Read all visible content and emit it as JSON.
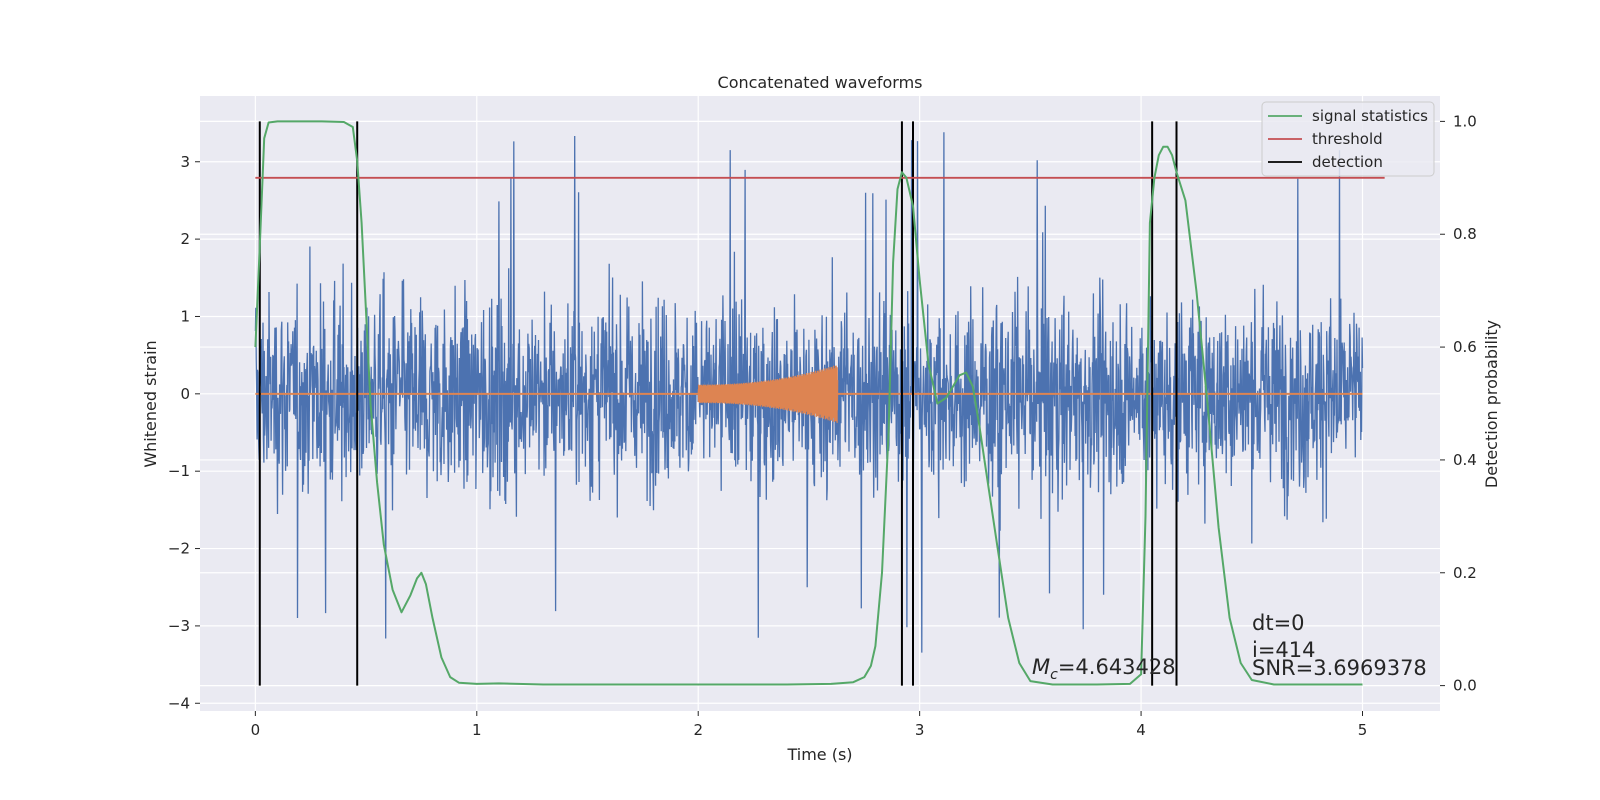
{
  "chart_data": {
    "type": "line",
    "title": "Concatenated waveforms",
    "xlabel": "Time (s)",
    "ylabel": "Whitened strain",
    "y2label": "Detection probability",
    "xlim": [
      -0.25,
      5.35
    ],
    "ylim": [
      -4.1,
      3.85
    ],
    "y2lim": [
      -0.045,
      1.045
    ],
    "x_ticks": [
      0,
      1,
      2,
      3,
      4,
      5
    ],
    "y_ticks": [
      -4,
      -3,
      -2,
      -1,
      0,
      1,
      2,
      3
    ],
    "y2_ticks": [
      0.0,
      0.2,
      0.4,
      0.6,
      0.8,
      1.0
    ],
    "y2_tick_labels": [
      "0.0",
      "0.2",
      "0.4",
      "0.6",
      "0.8",
      "1.0"
    ],
    "grid": true,
    "legend_position": "top-right",
    "colors": {
      "background": "#eaeaf2",
      "grid": "#ffffff",
      "strain": "#4c72b0",
      "template": "#dd8452",
      "signal_statistics": "#55a868",
      "threshold": "#c44e52",
      "detection": "#000000"
    },
    "series": [
      {
        "name": "signal statistics",
        "axis": "right",
        "x": [
          0.0,
          0.02,
          0.04,
          0.06,
          0.1,
          0.2,
          0.3,
          0.4,
          0.44,
          0.46,
          0.48,
          0.5,
          0.52,
          0.55,
          0.58,
          0.62,
          0.66,
          0.7,
          0.73,
          0.75,
          0.77,
          0.8,
          0.84,
          0.88,
          0.92,
          1.0,
          1.1,
          1.3,
          1.6,
          2.0,
          2.4,
          2.6,
          2.7,
          2.75,
          2.78,
          2.8,
          2.83,
          2.86,
          2.88,
          2.9,
          2.92,
          2.94,
          2.97,
          3.0,
          3.04,
          3.08,
          3.12,
          3.15,
          3.18,
          3.21,
          3.24,
          3.27,
          3.3,
          3.35,
          3.4,
          3.45,
          3.5,
          3.6,
          3.8,
          3.95,
          4.0,
          4.02,
          4.04,
          4.06,
          4.08,
          4.1,
          4.12,
          4.14,
          4.16,
          4.2,
          4.25,
          4.3,
          4.35,
          4.4,
          4.45,
          4.5,
          4.6,
          4.8,
          5.0
        ],
        "values": [
          0.6,
          0.78,
          0.97,
          0.998,
          1.0,
          1.0,
          1.0,
          0.999,
          0.99,
          0.93,
          0.82,
          0.66,
          0.5,
          0.36,
          0.25,
          0.17,
          0.13,
          0.16,
          0.19,
          0.2,
          0.18,
          0.12,
          0.05,
          0.015,
          0.005,
          0.003,
          0.004,
          0.002,
          0.002,
          0.002,
          0.002,
          0.003,
          0.006,
          0.015,
          0.035,
          0.07,
          0.2,
          0.45,
          0.75,
          0.88,
          0.91,
          0.9,
          0.85,
          0.72,
          0.57,
          0.5,
          0.51,
          0.53,
          0.55,
          0.555,
          0.53,
          0.46,
          0.38,
          0.25,
          0.12,
          0.04,
          0.008,
          0.002,
          0.002,
          0.003,
          0.02,
          0.3,
          0.82,
          0.9,
          0.94,
          0.955,
          0.955,
          0.94,
          0.91,
          0.86,
          0.7,
          0.5,
          0.28,
          0.12,
          0.04,
          0.01,
          0.002,
          0.002,
          0.002
        ]
      },
      {
        "name": "threshold",
        "axis": "right",
        "x": [
          0.0,
          5.1
        ],
        "values": [
          0.9,
          0.9
        ]
      },
      {
        "name": "detection",
        "axis": "right",
        "vlines_x": [
          0.02,
          0.46,
          2.92,
          2.97,
          4.05,
          4.16
        ],
        "ymin": 0.0,
        "ymax": 1.0
      },
      {
        "axis": "left",
        "type": "noise-trace",
        "x_start": 0.0,
        "x_end": 5.0,
        "typical_range": [
          -2.0,
          2.0
        ],
        "spike_range": [
          -3.75,
          3.45
        ]
      },
      {
        "axis": "left",
        "type": "chirp",
        "x_start": 2.0,
        "x_end": 2.63,
        "amplitude_start": 0.12,
        "amplitude_end": 0.38,
        "baseline": 0.0,
        "baseline_span": [
          0.0,
          5.0
        ]
      }
    ],
    "annotations": {
      "mc_prefix": "M",
      "mc_subscript": "c",
      "mc_value": "=4.643428",
      "dt": "dt=0",
      "index": "i=414",
      "snr": "SNR=3.6969378"
    }
  }
}
